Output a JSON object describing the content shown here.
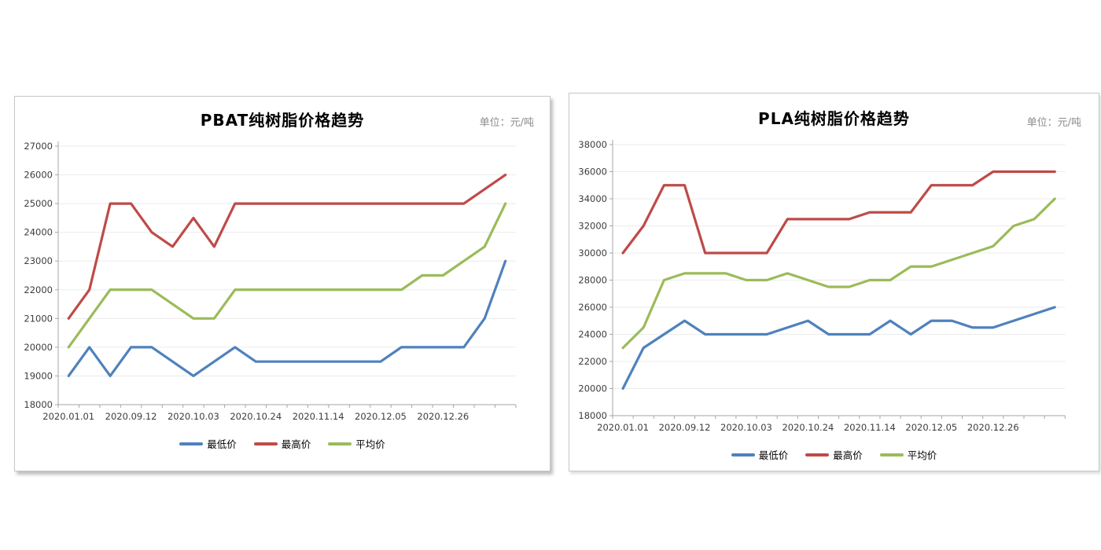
{
  "chart_data": [
    {
      "id": "pbat",
      "type": "line",
      "title": "PBAT纯树脂价格趋势",
      "unit_label": "单位：元/吨",
      "ylim": [
        18000,
        27000
      ],
      "ytick_step": 1000,
      "ytick_labels": [
        "18000",
        "19000",
        "20000",
        "21000",
        "22000",
        "23000",
        "24000",
        "25000",
        "26000",
        "27000"
      ],
      "xtick_labels": [
        "2020.01.01",
        "2020.09.12",
        "2020.10.03",
        "2020.10.24",
        "2020.11.14",
        "2020.12.05",
        "2020.12.26"
      ],
      "xtick_positions": [
        0,
        3,
        6,
        9,
        12,
        15,
        18
      ],
      "n_points": 22,
      "grid": "horizontal",
      "legend_position": "bottom",
      "series": [
        {
          "name": "最低价",
          "color": "#4F81BD",
          "values": [
            19000,
            20000,
            19000,
            20000,
            20000,
            19500,
            19000,
            19500,
            20000,
            19500,
            19500,
            19500,
            19500,
            19500,
            19500,
            19500,
            20000,
            20000,
            20000,
            20000,
            21000,
            23000
          ]
        },
        {
          "name": "最高价",
          "color": "#BE4B48",
          "values": [
            21000,
            22000,
            25000,
            25000,
            24000,
            23500,
            24500,
            23500,
            25000,
            25000,
            25000,
            25000,
            25000,
            25000,
            25000,
            25000,
            25000,
            25000,
            25000,
            25000,
            25500,
            26000
          ]
        },
        {
          "name": "平均价",
          "color": "#9BBB59",
          "values": [
            20000,
            21000,
            22000,
            22000,
            22000,
            21500,
            21000,
            21000,
            22000,
            22000,
            22000,
            22000,
            22000,
            22000,
            22000,
            22000,
            22000,
            22500,
            22500,
            23000,
            23500,
            25000
          ]
        }
      ]
    },
    {
      "id": "pla",
      "type": "line",
      "title": "PLA纯树脂价格趋势",
      "unit_label": "单位：元/吨",
      "ylim": [
        18000,
        38000
      ],
      "ytick_step": 2000,
      "ytick_labels": [
        "18000",
        "20000",
        "22000",
        "24000",
        "26000",
        "28000",
        "30000",
        "32000",
        "34000",
        "36000",
        "38000"
      ],
      "xtick_labels": [
        "2020.01.01",
        "2020.09.12",
        "2020.10.03",
        "2020.10.24",
        "2020.11.14",
        "2020.12.05",
        "2020.12.26"
      ],
      "xtick_positions": [
        0,
        3,
        6,
        9,
        12,
        15,
        18
      ],
      "n_points": 22,
      "grid": "horizontal",
      "legend_position": "bottom",
      "series": [
        {
          "name": "最低价",
          "color": "#4F81BD",
          "values": [
            20000,
            23000,
            24000,
            25000,
            24000,
            24000,
            24000,
            24000,
            24500,
            25000,
            24000,
            24000,
            24000,
            25000,
            24000,
            25000,
            25000,
            24500,
            24500,
            25000,
            25500,
            26000
          ]
        },
        {
          "name": "最高价",
          "color": "#BE4B48",
          "values": [
            30000,
            32000,
            35000,
            35000,
            30000,
            30000,
            30000,
            30000,
            32500,
            32500,
            32500,
            32500,
            33000,
            33000,
            33000,
            35000,
            35000,
            35000,
            36000,
            36000,
            36000,
            36000
          ]
        },
        {
          "name": "平均价",
          "color": "#9BBB59",
          "values": [
            23000,
            24500,
            28000,
            28500,
            28500,
            28500,
            28000,
            28000,
            28500,
            28000,
            27500,
            27500,
            28000,
            28000,
            29000,
            29000,
            29500,
            30000,
            30500,
            32000,
            32500,
            34000
          ]
        }
      ]
    }
  ]
}
